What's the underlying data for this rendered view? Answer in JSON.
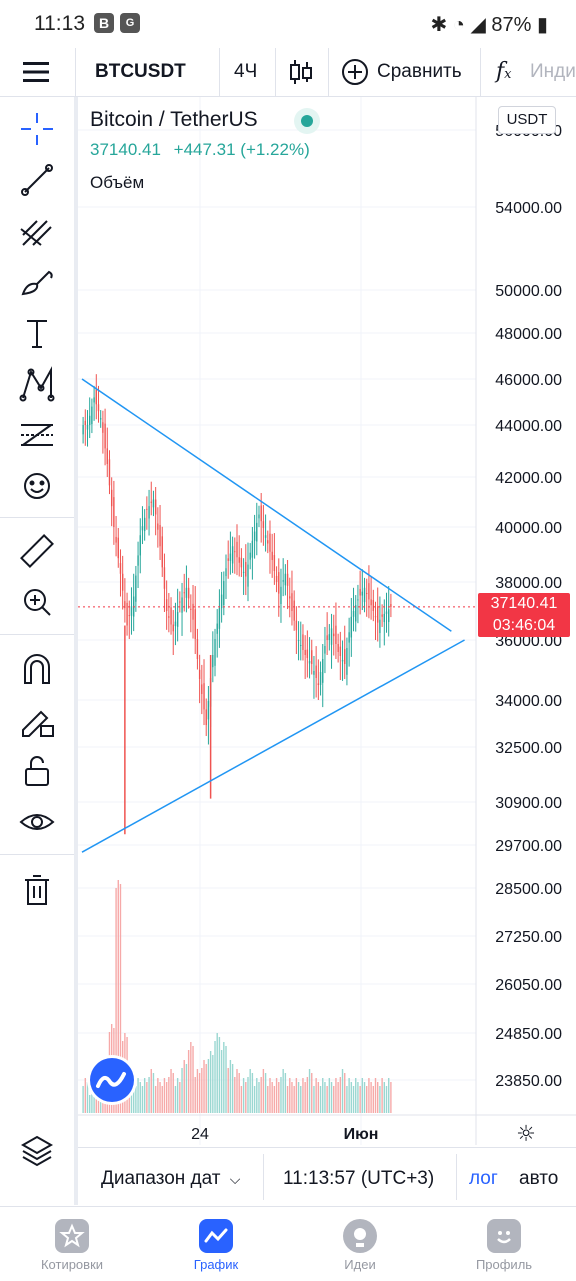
{
  "status_bar": {
    "time": "11:13",
    "app_icon_1": "B",
    "battery": "87%"
  },
  "toolbar": {
    "menu_icon": "hamburger-icon",
    "symbol": "BTCUSDT",
    "interval": "4Ч",
    "chart_type_icon": "candles-icon",
    "compare_label": "Сравнить",
    "indicators_label": "Инди"
  },
  "legend": {
    "title": "Bitcoin / TetherUS",
    "last_price": "37140.41",
    "change": "+447.31 (+1.22%)",
    "volume_label": "Объём",
    "currency_badge": "USDT"
  },
  "price_tag": {
    "price": "37140.41",
    "countdown": "03:46:04"
  },
  "left_tools": [
    "crosshair-icon",
    "trend-line-icon",
    "pitchfork-icon",
    "brush-icon",
    "text-icon",
    "pattern-icon",
    "fib-levels-icon",
    "emoji-icon",
    "ruler-icon",
    "zoom-in-icon",
    "magnet-icon",
    "lock-drawing-icon",
    "unlock-icon",
    "eye-icon",
    "trash-icon",
    "layers-icon"
  ],
  "bottom_bar": {
    "date_range_label": "Диапазон дат",
    "clock": "11:13:57 (UTC+3)",
    "log_label": "лог",
    "auto_label": "авто"
  },
  "nav": [
    {
      "label": "Котировки",
      "icon": "star-icon",
      "active": false
    },
    {
      "label": "График",
      "icon": "chart-icon",
      "active": true
    },
    {
      "label": "Идеи",
      "icon": "lightbulb-icon",
      "active": false
    },
    {
      "label": "Профиль",
      "icon": "smiley-icon",
      "active": false
    }
  ],
  "colors": {
    "up": "#26a69a",
    "down": "#ef5350",
    "trendline": "#2196f3",
    "accent": "#2962ff",
    "price_line": "#f23645"
  },
  "chart_data": {
    "type": "candlestick",
    "symbol": "BTCUSDT",
    "interval": "4Ч",
    "y_axis_labels": [
      56000,
      54000,
      50000,
      48000,
      46000,
      44000,
      42000,
      40000,
      38000,
      36000,
      34000,
      32500,
      30900,
      29700,
      28500,
      27250,
      26050,
      24850,
      23850
    ],
    "x_axis_labels": [
      "24",
      "Июн"
    ],
    "last_price": 37140.41,
    "close_path": [
      44000,
      45200,
      44300,
      42500,
      40000,
      38300,
      36500,
      37500,
      39700,
      40700,
      41100,
      39300,
      37000,
      36300,
      37300,
      37800,
      36700,
      34700,
      33200,
      35500,
      37100,
      38500,
      39300,
      38700,
      38200,
      39500,
      40500,
      39700,
      38800,
      37600,
      38300,
      37000,
      36000,
      35500,
      35200,
      34500,
      35800,
      36400,
      35600,
      35200,
      36800,
      37400,
      37800,
      37200,
      36600,
      36900,
      37140.41
    ],
    "spikes": [
      {
        "index": 6,
        "low": 30000
      },
      {
        "index": 19,
        "low": 31000
      }
    ],
    "volume_profile": [
      3,
      2,
      3,
      5,
      9,
      25,
      8,
      4,
      3,
      3,
      4,
      3,
      3,
      4,
      3,
      5,
      7,
      4,
      5,
      6,
      8,
      7,
      5,
      4,
      3,
      4,
      3,
      4,
      3,
      3,
      4,
      3,
      3,
      3,
      4,
      3,
      3,
      3,
      3,
      4,
      3,
      3,
      3,
      3,
      3,
      3,
      3
    ],
    "trendlines": [
      {
        "name": "upper",
        "from": [
          0,
          46000
        ],
        "to": [
          56,
          36300
        ]
      },
      {
        "name": "lower",
        "from": [
          0,
          29500
        ],
        "to": [
          58,
          36000
        ]
      }
    ]
  }
}
